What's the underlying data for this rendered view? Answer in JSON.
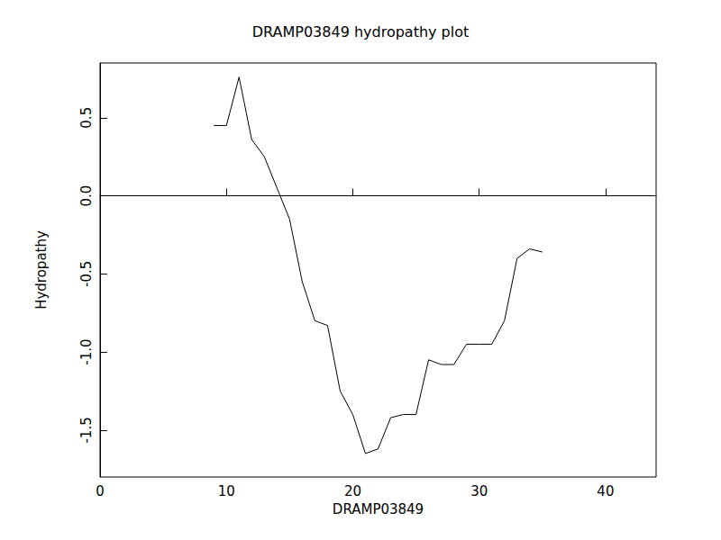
{
  "chart_data": {
    "type": "line",
    "title": "DRAMP03849 hydropathy plot",
    "x_label": "DRAMP03849",
    "y_label": "Hydropathy",
    "x": [
      9,
      10,
      11,
      12,
      13,
      14,
      15,
      16,
      17,
      18,
      19,
      20,
      21,
      22,
      23,
      24,
      25,
      26,
      27,
      28,
      29,
      30,
      31,
      32,
      33,
      34,
      35
    ],
    "values": [
      0.45,
      0.45,
      0.76,
      0.36,
      0.25,
      0.05,
      -0.15,
      -0.55,
      -0.8,
      -0.83,
      -1.25,
      -1.4,
      -1.65,
      -1.62,
      -1.42,
      -1.4,
      -1.4,
      -1.05,
      -1.08,
      -1.08,
      -0.95,
      -0.95,
      -0.95,
      -0.8,
      -0.4,
      -0.34,
      -0.36
    ],
    "color": "#000000",
    "marker": "none",
    "xlim": [
      0,
      44
    ],
    "xticks": [
      0,
      10,
      20,
      30,
      40
    ],
    "ylim": [
      -1.8,
      0.85
    ],
    "yticks": [
      -1.5,
      {
        "value": -1.0,
        "label": "-1.0"
      },
      -0.5,
      {
        "value": 0.0,
        "label": "0.0"
      },
      0.5
    ],
    "grid": false
  }
}
